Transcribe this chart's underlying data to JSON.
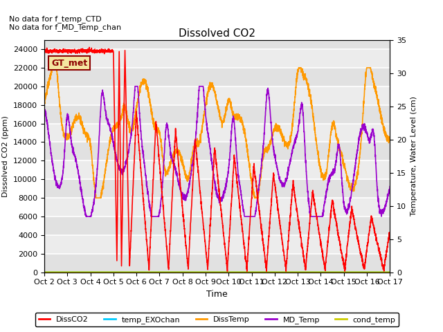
{
  "title": "Dissolved CO2",
  "xlabel": "Time",
  "ylabel_left": "Dissolved CO2 (ppm)",
  "ylabel_right": "Temperature, Water Level (cm)",
  "ylim_left": [
    0,
    25000
  ],
  "ylim_right": [
    0,
    35
  ],
  "annotation_lines": [
    "No data for f_temp_CTD",
    "No data for f_MD_Temp_chan"
  ],
  "legend_label": "GT_met",
  "xtick_labels": [
    "Oct 2",
    "Oct 3",
    "Oct 4",
    "Oct 5",
    "Oct 6",
    "Oct 7",
    "Oct 8",
    "Oct 9",
    "Oct 10",
    "Oct 11",
    "Oct 12",
    "Oct 13",
    "Oct 14",
    "Oct 15",
    "Oct 16",
    "Oct 17"
  ],
  "series": {
    "DissCO2": {
      "color": "#ff0000",
      "lw": 1.2
    },
    "temp_EXOchan": {
      "color": "#00ccff",
      "lw": 1.2
    },
    "DissTemp": {
      "color": "#ff9900",
      "lw": 1.2
    },
    "MD_Temp": {
      "color": "#9900cc",
      "lw": 1.2
    },
    "cond_temp": {
      "color": "#cccc00",
      "lw": 1.2
    }
  },
  "bg_color": "#e8e8e8",
  "plot_bg_color": "#ececec"
}
